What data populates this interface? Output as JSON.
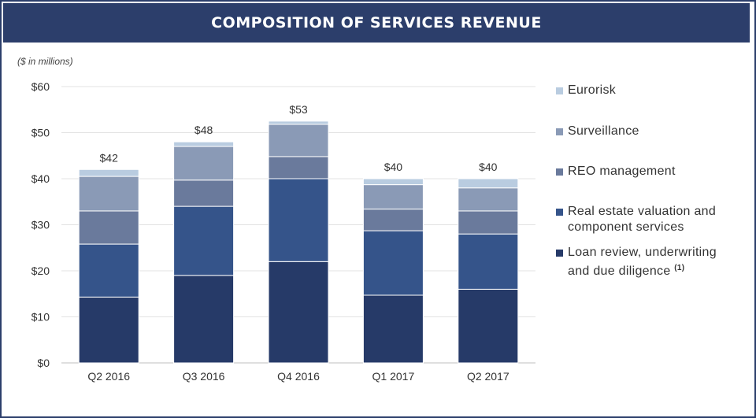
{
  "header": {
    "title": "COMPOSITION OF SERVICES REVENUE"
  },
  "unit_note": "($ in millions)",
  "chart_data": {
    "type": "bar",
    "stacked": true,
    "categories": [
      "Q2 2016",
      "Q3 2016",
      "Q4 2016",
      "Q1 2017",
      "Q2 2017"
    ],
    "totals": [
      "$42",
      "$48",
      "$53",
      "$40",
      "$40"
    ],
    "yticks": [
      "$0",
      "$10",
      "$20",
      "$30",
      "$40",
      "$50",
      "$60"
    ],
    "ylim": [
      0,
      60
    ],
    "grid": true,
    "legend_position": "right",
    "series": [
      {
        "name": "Loan review, underwriting and due diligence",
        "footnote": "(1)",
        "color": "#263a68",
        "values": [
          14.3,
          19.0,
          22.0,
          14.7,
          16.0
        ]
      },
      {
        "name": "Real estate valuation and component services",
        "color": "#35548a",
        "values": [
          11.5,
          15.0,
          18.0,
          14.0,
          12.0
        ]
      },
      {
        "name": "REO management",
        "color": "#6a7a9c",
        "values": [
          7.2,
          5.7,
          4.8,
          4.7,
          5.0
        ]
      },
      {
        "name": "Surveillance",
        "color": "#8a9ab6",
        "values": [
          7.5,
          7.3,
          7.0,
          5.3,
          5.0
        ]
      },
      {
        "name": "Eurorisk",
        "color": "#b9cce0",
        "values": [
          1.5,
          1.0,
          0.7,
          1.3,
          2.0
        ]
      }
    ]
  }
}
